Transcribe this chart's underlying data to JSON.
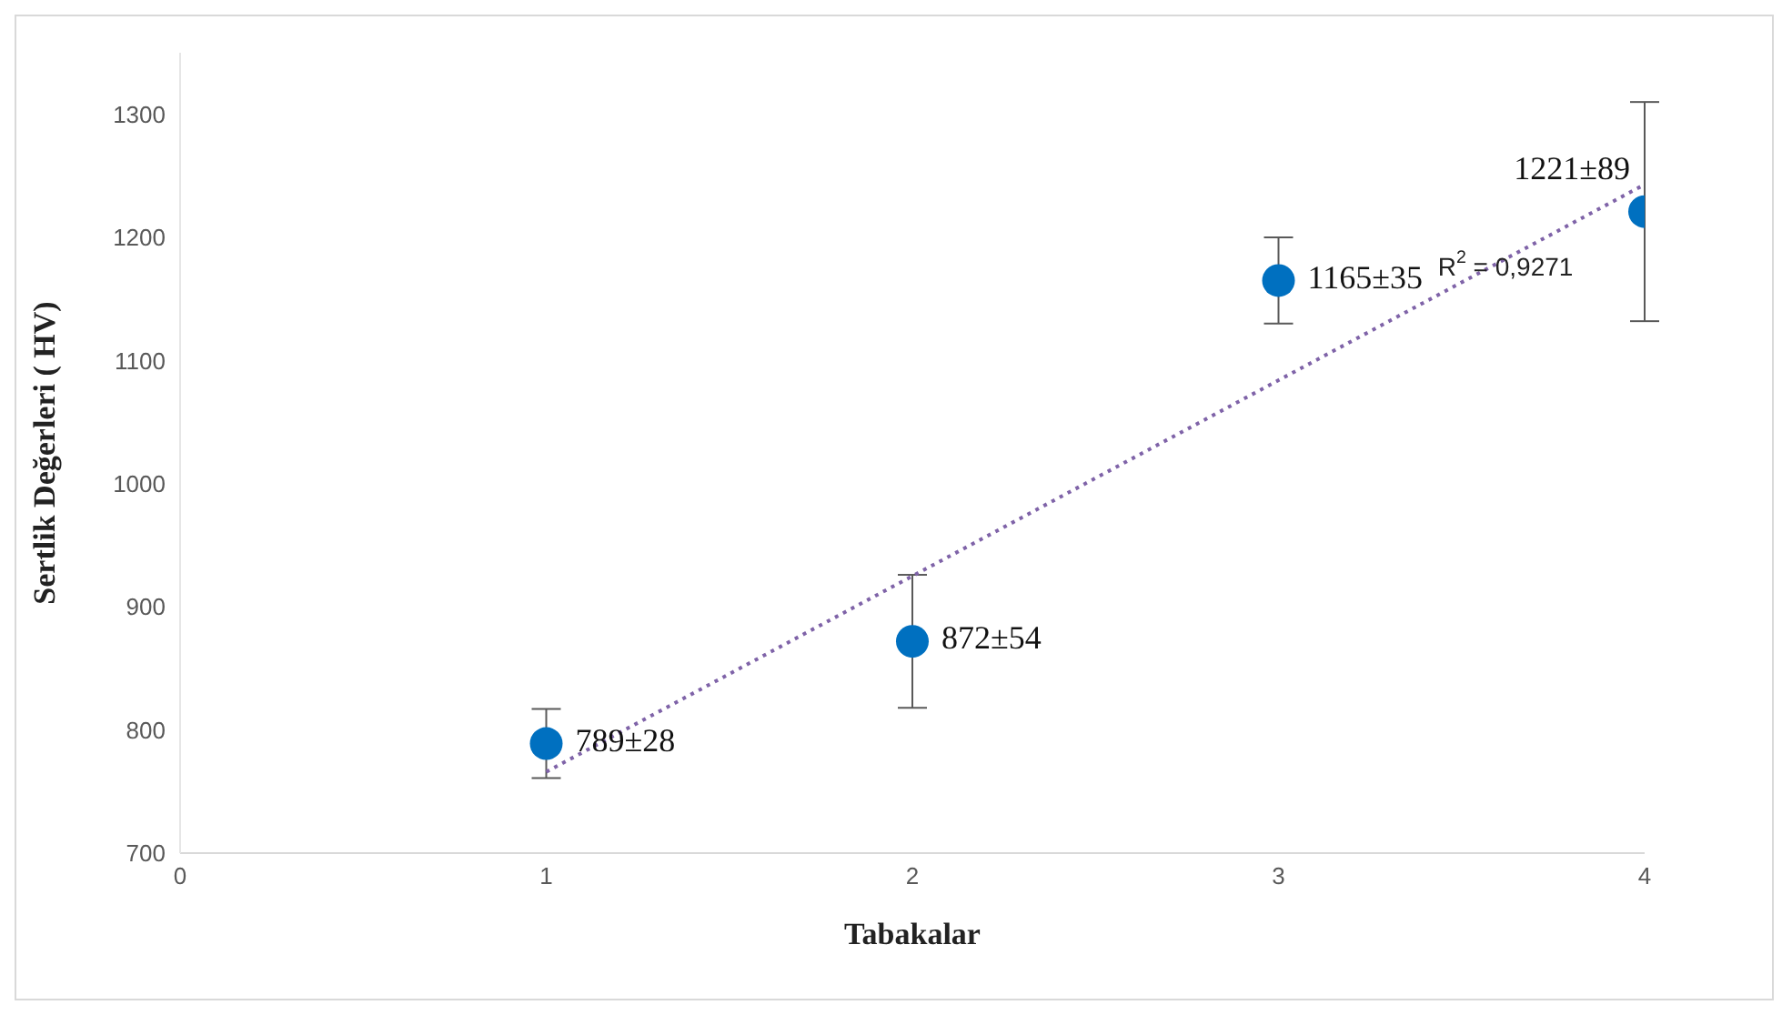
{
  "chart_data": {
    "type": "scatter",
    "xlabel": "Tabakalar",
    "ylabel": "Sertlik Değerleri ( HV)",
    "xlim": [
      0,
      4
    ],
    "xticks": [
      0,
      1,
      2,
      3,
      4
    ],
    "ylim": [
      700,
      1350
    ],
    "yticks": [
      700,
      800,
      900,
      1000,
      1100,
      1200,
      1300
    ],
    "grid": false,
    "legend": false,
    "marker": "circle",
    "series": [
      {
        "color": "#0070c0",
        "x": [
          1,
          2,
          3,
          4
        ],
        "values": [
          789,
          872,
          1165,
          1221
        ],
        "errors": [
          28,
          54,
          35,
          89
        ],
        "value_labels": [
          "789±28",
          "872±54",
          "1165±35",
          "1221±89"
        ]
      },
      {
        "type": "line",
        "color": "#7f63a8",
        "line_style": "dotted",
        "marker": "none",
        "x": [
          1,
          4
        ],
        "values": [
          766,
          1243
        ]
      }
    ],
    "annotations": [
      {
        "text": "R$^{2}$ = 0,9271",
        "x": 3.62,
        "y": 1175
      }
    ]
  }
}
